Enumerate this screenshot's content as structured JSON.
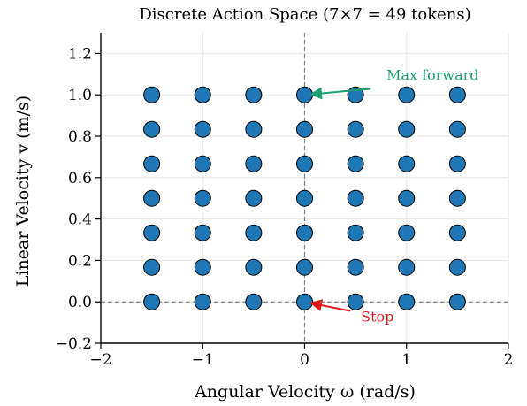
{
  "chart_data": {
    "type": "scatter",
    "title": "Discrete Action Space (7×7 = 49 tokens)",
    "xlabel": "Angular Velocity ω (rad/s)",
    "ylabel": "Linear Velocity v (m/s)",
    "xlim": [
      -2,
      2
    ],
    "ylim": [
      -0.2,
      1.3
    ],
    "xticks": [
      -2,
      -1,
      0,
      1,
      2
    ],
    "xtick_labels": [
      "−2",
      "−1",
      "0",
      "1",
      "2"
    ],
    "yticks": [
      -0.2,
      0.0,
      0.2,
      0.4,
      0.6,
      0.8,
      1.0,
      1.2
    ],
    "ytick_labels": [
      "−0.2",
      "0.0",
      "0.2",
      "0.4",
      "0.6",
      "0.8",
      "1.0",
      "1.2"
    ],
    "grid": true,
    "reference_lines": {
      "x": 0,
      "y": 0,
      "style": "dashed"
    },
    "x_values": [
      -1.5,
      -1.0,
      -0.5,
      0.0,
      0.5,
      1.0,
      1.5
    ],
    "y_values": [
      0.0,
      0.1667,
      0.3333,
      0.5,
      0.6667,
      0.8333,
      1.0
    ],
    "point_color": "#1f77b4",
    "point_edge_color": "#000000",
    "annotations": [
      {
        "text": "Max forward",
        "point": [
          0.0,
          1.0
        ],
        "text_position": [
          0.7,
          1.08
        ],
        "color": "#1a9e72"
      },
      {
        "text": "Stop",
        "point": [
          0.0,
          0.0
        ],
        "text_position": [
          0.5,
          -0.07
        ],
        "color": "#e31a1c"
      }
    ]
  }
}
